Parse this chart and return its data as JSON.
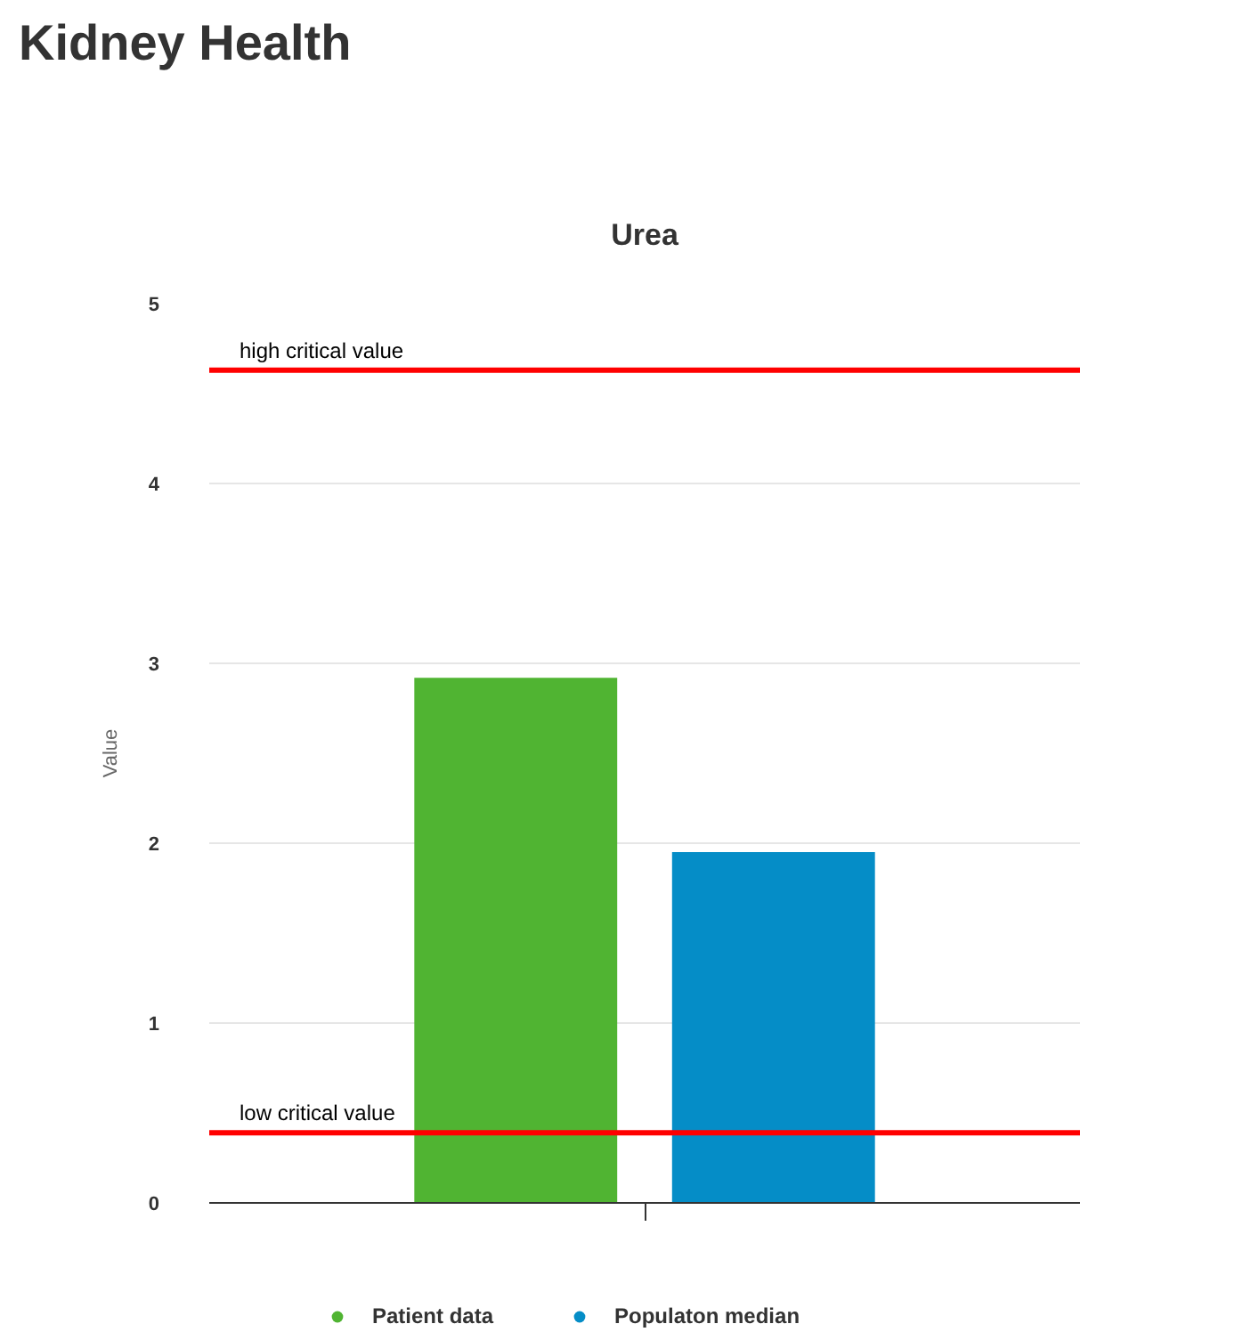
{
  "chart_data": {
    "type": "bar",
    "title": "Kidney Health",
    "subtitle": "Urea",
    "ylabel": "Value",
    "categories": [
      null
    ],
    "series": [
      {
        "name": "Patient data",
        "color": "#50b432",
        "values": [
          2.92
        ]
      },
      {
        "name": "Populaton median",
        "color": "#058dc7",
        "values": [
          1.95
        ]
      }
    ],
    "ylim": [
      0,
      5
    ],
    "yticks": [
      0,
      1,
      2,
      3,
      4,
      5
    ],
    "grid": "y",
    "legend": "bottom",
    "marker": "circle",
    "ref_lines": [
      {
        "axis": "y",
        "value": 4.63,
        "label": "high critical value",
        "color": "#ff0000"
      },
      {
        "axis": "y",
        "value": 0.39,
        "label": "low critical value",
        "color": "#ff0000"
      }
    ]
  }
}
